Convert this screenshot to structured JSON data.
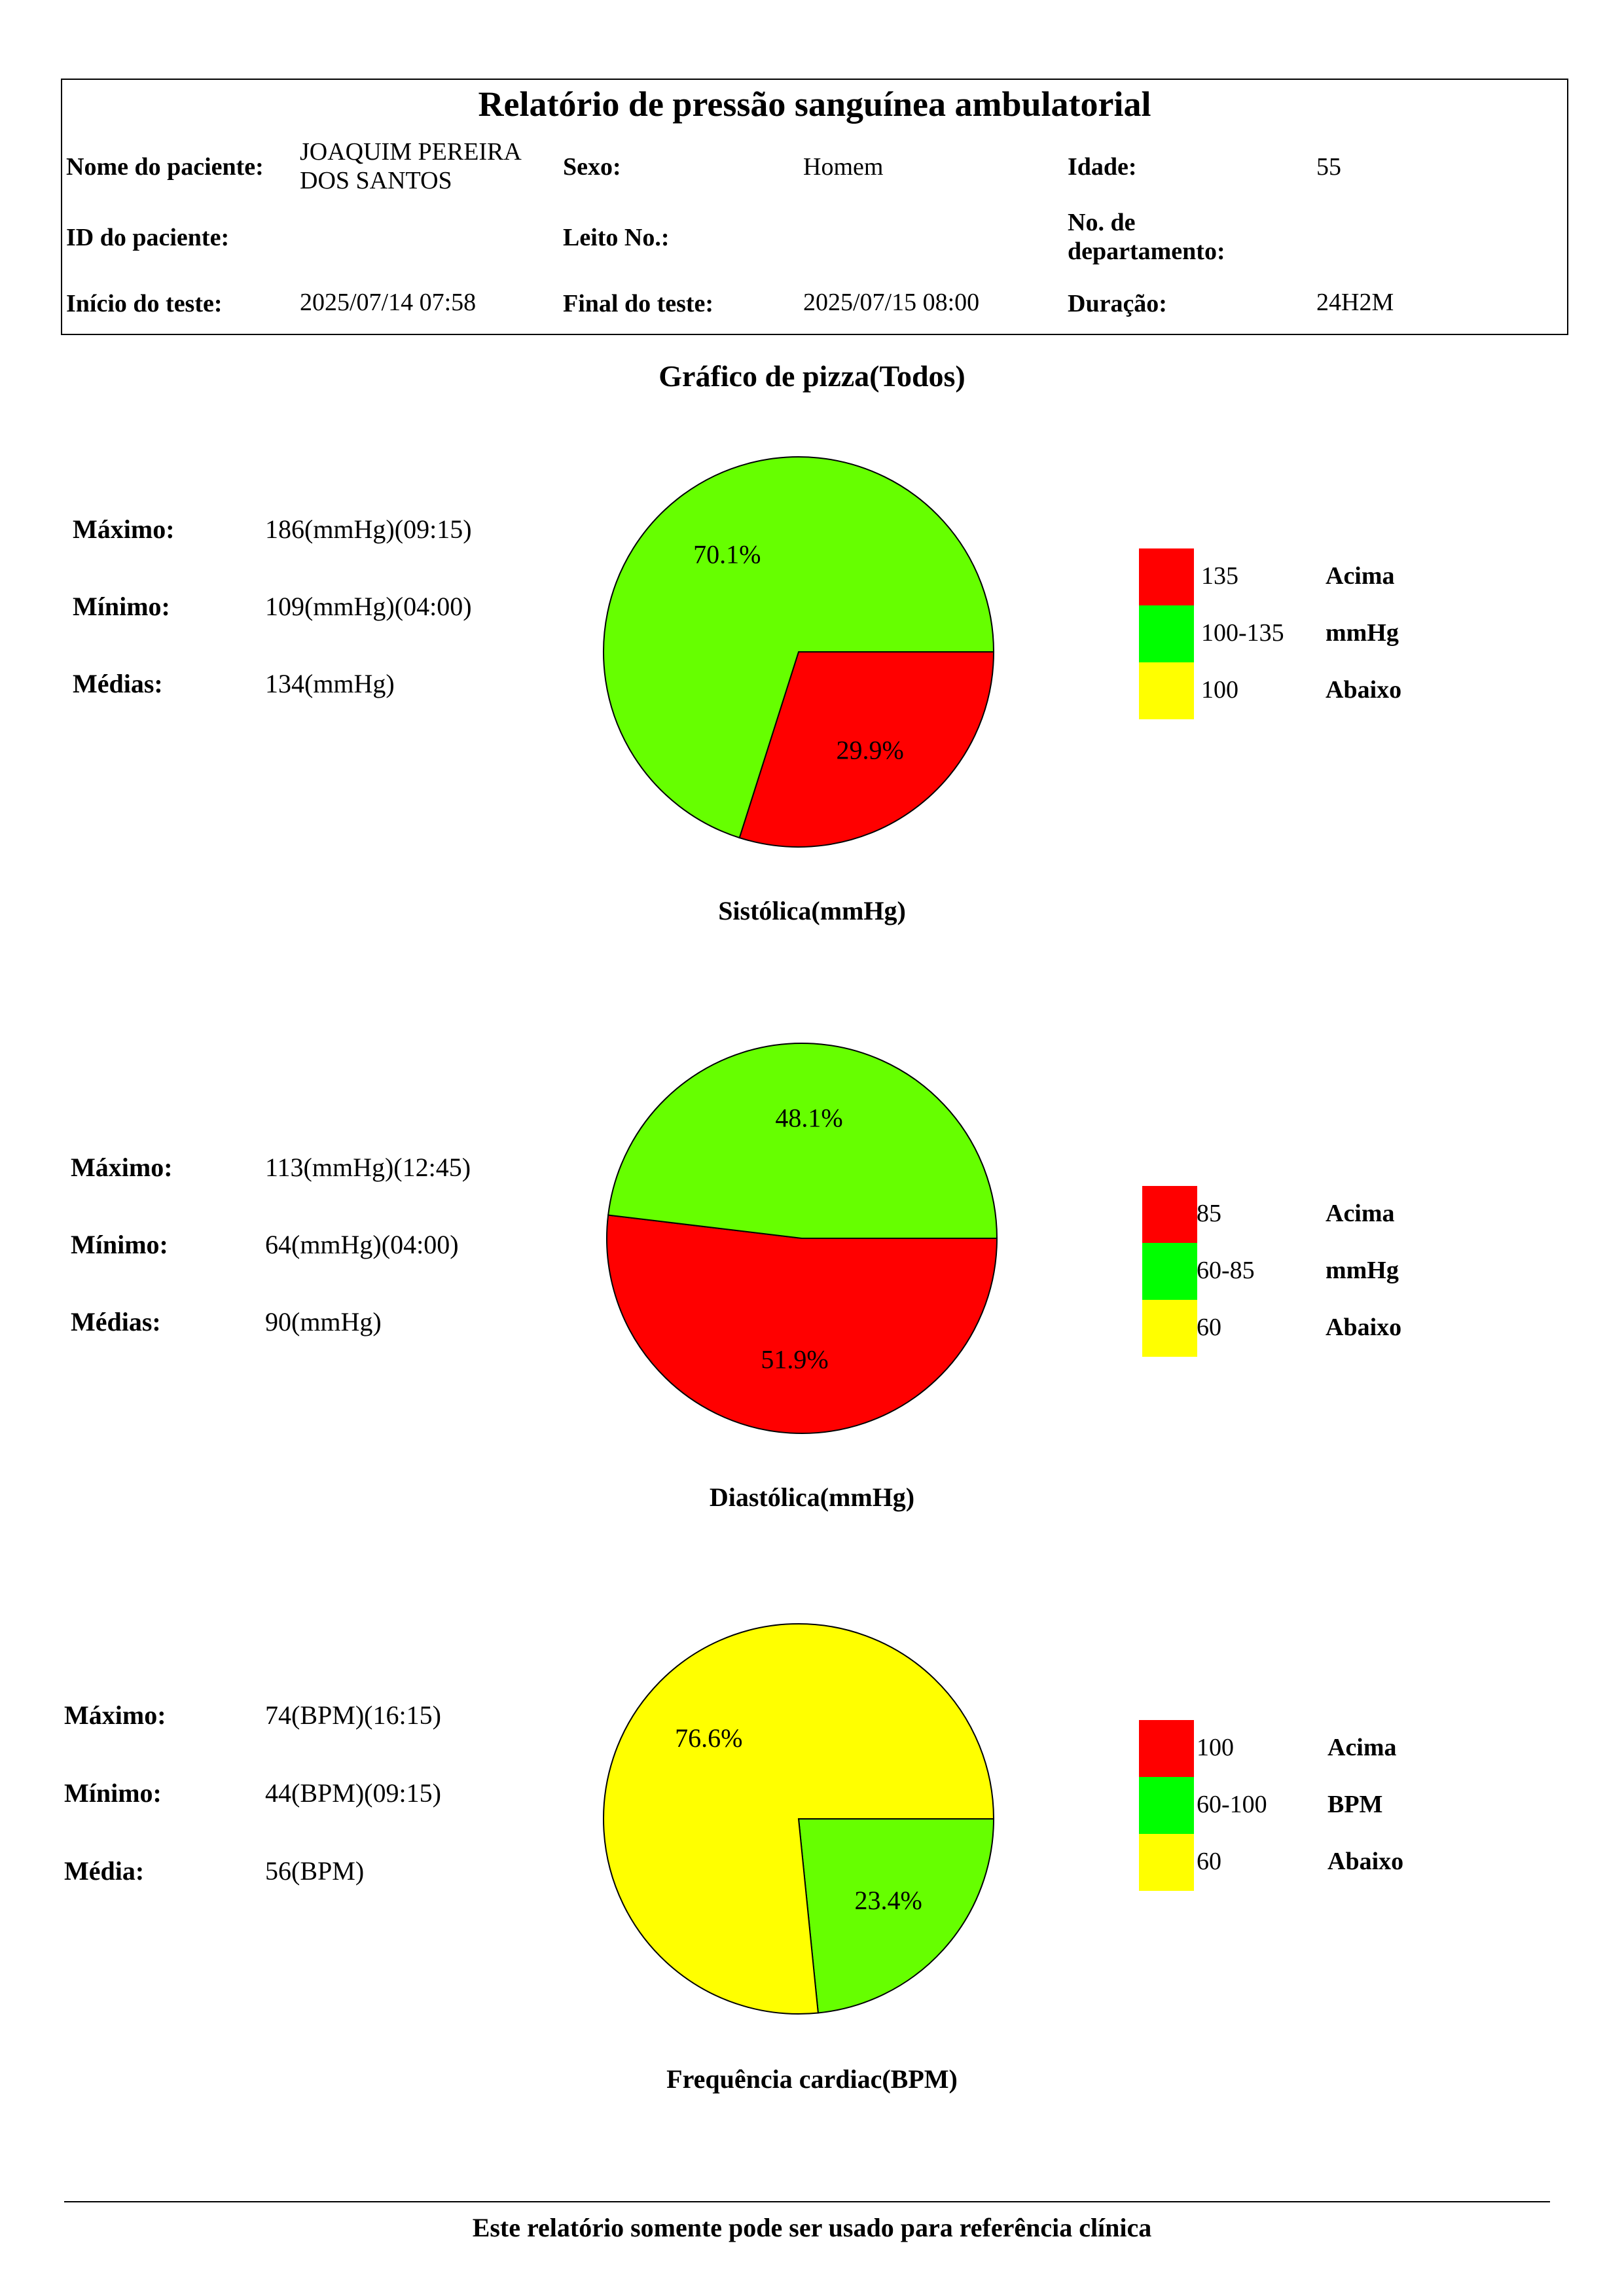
{
  "header": {
    "title": "Relatório de pressão sanguínea ambulatorial",
    "patient_name_label": "Nome do paciente:",
    "patient_name_line1": "JOAQUIM PEREIRA",
    "patient_name_line2": "DOS SANTOS",
    "sex_label": "Sexo:",
    "sex_value": "Homem",
    "age_label": "Idade:",
    "age_value": "55",
    "patient_id_label": "ID do paciente:",
    "patient_id_value": "",
    "bed_label": "Leito No.:",
    "bed_value": "",
    "dept_label_line1": "No. de",
    "dept_label_line2": "departamento:",
    "dept_value": "",
    "start_label": "Início do teste:",
    "start_value": "2025/07/14 07:58",
    "end_label": "Final do teste:",
    "end_value": "2025/07/15 08:00",
    "duration_label": "Duração:",
    "duration_value": "24H2M"
  },
  "section_title": "Gráfico de pizza(Todos)",
  "colors": {
    "red": "#ff0000",
    "green": "#66ff00",
    "legend_green": "#00ff00",
    "yellow": "#ffff00"
  },
  "charts": [
    {
      "stats": [
        {
          "label": "Máximo:",
          "value": "186(mmHg)(09:15)"
        },
        {
          "label": "Mínimo:",
          "value": "109(mmHg)(04:00)"
        },
        {
          "label": "Médias:",
          "value": "134(mmHg)"
        }
      ],
      "caption": "Sistólica(mmHg)",
      "legend": [
        {
          "range": "135",
          "label": "Acima",
          "color": "#ff0000"
        },
        {
          "range": "100-135",
          "label": "mmHg",
          "color": "#00ff00"
        },
        {
          "range": "100",
          "label": "Abaixo",
          "color": "#ffff00"
        }
      ]
    },
    {
      "stats": [
        {
          "label": "Máximo:",
          "value": "113(mmHg)(12:45)"
        },
        {
          "label": "Mínimo:",
          "value": "64(mmHg)(04:00)"
        },
        {
          "label": "Médias:",
          "value": "90(mmHg)"
        }
      ],
      "caption": "Diastólica(mmHg)",
      "legend": [
        {
          "range": "85",
          "label": "Acima",
          "color": "#ff0000"
        },
        {
          "range": "60-85",
          "label": "mmHg",
          "color": "#00ff00"
        },
        {
          "range": "60",
          "label": "Abaixo",
          "color": "#ffff00"
        }
      ]
    },
    {
      "stats": [
        {
          "label": "Máximo:",
          "value": "74(BPM)(16:15)"
        },
        {
          "label": "Mínimo:",
          "value": "44(BPM)(09:15)"
        },
        {
          "label": "Média:",
          "value": "56(BPM)"
        }
      ],
      "caption": "Frequência cardiac(BPM)",
      "legend": [
        {
          "range": "100",
          "label": "Acima",
          "color": "#ff0000"
        },
        {
          "range": "60-100",
          "label": "BPM",
          "color": "#00ff00"
        },
        {
          "range": "60",
          "label": "Abaixo",
          "color": "#ffff00"
        }
      ]
    }
  ],
  "chart_data": [
    {
      "type": "pie",
      "title": "Sistólica(mmHg)",
      "slices": [
        {
          "name": "Acima",
          "value": 29.9,
          "label": "29.9%",
          "color": "#ff0000"
        },
        {
          "name": "mmHg",
          "value": 70.1,
          "label": "70.1%",
          "color": "#66ff00"
        }
      ]
    },
    {
      "type": "pie",
      "title": "Diastólica(mmHg)",
      "slices": [
        {
          "name": "Acima",
          "value": 51.9,
          "label": "51.9%",
          "color": "#ff0000"
        },
        {
          "name": "mmHg",
          "value": 48.1,
          "label": "48.1%",
          "color": "#66ff00"
        }
      ]
    },
    {
      "type": "pie",
      "title": "Frequência cardiac(BPM)",
      "slices": [
        {
          "name": "BPM",
          "value": 23.4,
          "label": "23.4%",
          "color": "#66ff00"
        },
        {
          "name": "Abaixo",
          "value": 76.6,
          "label": "76.6%",
          "color": "#ffff00"
        }
      ]
    }
  ],
  "footer": "Este relatório somente pode ser usado para referência clínica"
}
